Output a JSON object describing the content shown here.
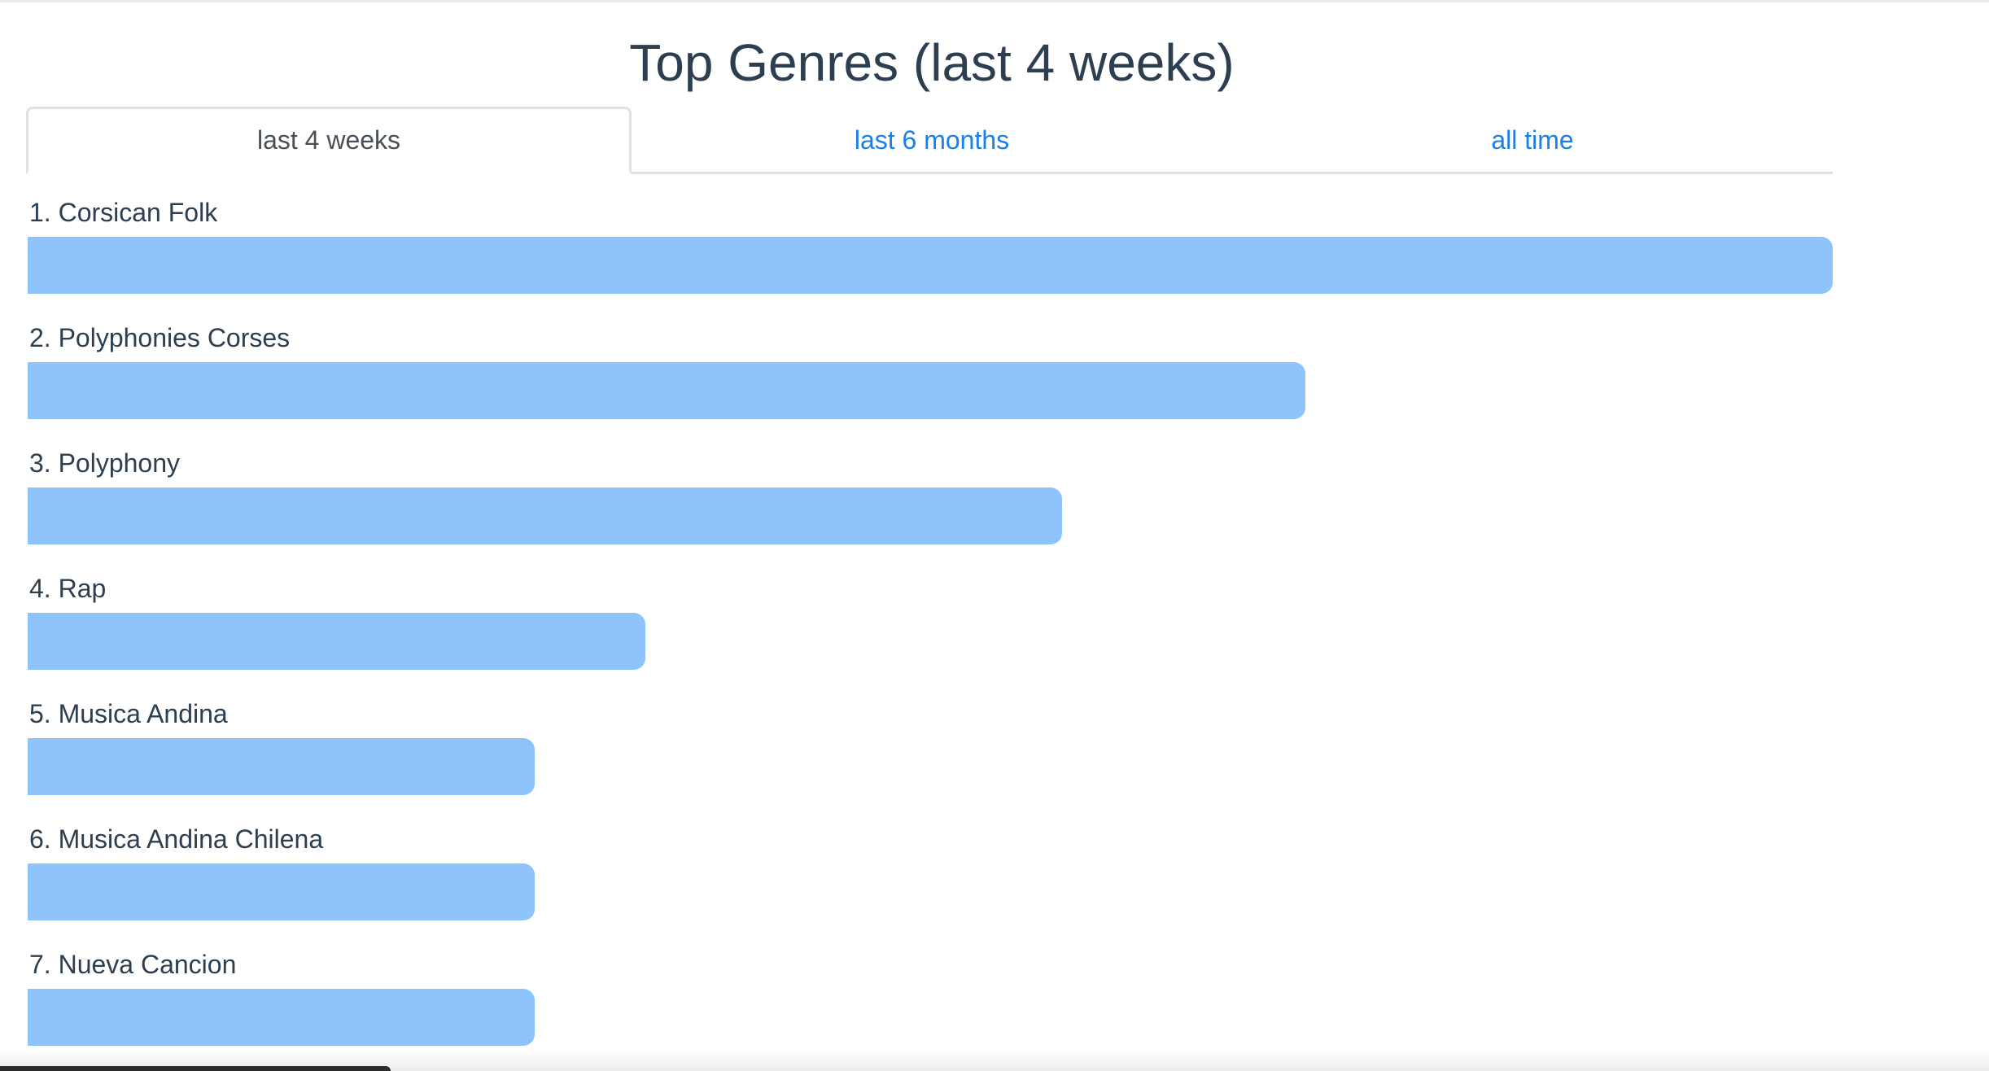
{
  "page_title": "Top Genres (last 4 weeks)",
  "tabs": [
    {
      "label": "last 4 weeks",
      "active": true
    },
    {
      "label": "last 6 months",
      "active": false
    },
    {
      "label": "all time",
      "active": false
    }
  ],
  "colors": {
    "bar": "#8fc3fc",
    "title": "#2c3e50",
    "tab_link": "#1a7fe8",
    "tab_active": "#495057"
  },
  "genres": [
    {
      "label": "1. Corsican Folk",
      "share": 1.0
    },
    {
      "label": "2. Polyphonies Corses",
      "share": 0.708
    },
    {
      "label": "3. Polyphony",
      "share": 0.573
    },
    {
      "label": "4. Rap",
      "share": 0.342
    },
    {
      "label": "5. Musica Andina",
      "share": 0.281
    },
    {
      "label": "6. Musica Andina Chilena",
      "share": 0.281
    },
    {
      "label": "7. Nueva Cancion",
      "share": 0.281
    }
  ]
}
